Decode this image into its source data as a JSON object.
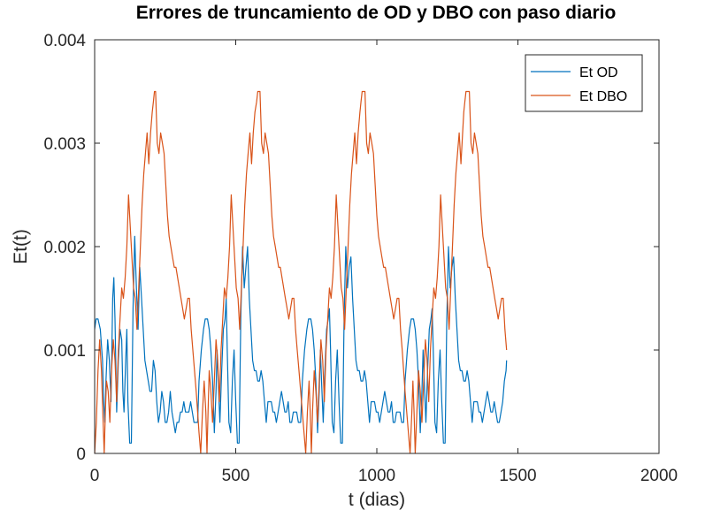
{
  "chart_data": {
    "type": "line",
    "title": "Errores de truncamiento de OD y DBO con paso diario",
    "xlabel": "t (dias)",
    "ylabel": "Et(t)",
    "xlim": [
      0,
      2000
    ],
    "ylim": [
      0,
      0.004
    ],
    "xticks": [
      0,
      500,
      1000,
      1500,
      2000
    ],
    "xtick_labels": [
      "0",
      "500",
      "1000",
      "1500",
      "2000"
    ],
    "yticks": [
      0,
      0.001,
      0.002,
      0.003,
      0.004
    ],
    "ytick_labels": [
      "0",
      "0.001",
      "0.002",
      "0.003",
      "0.004"
    ],
    "grid": false,
    "box": true,
    "legend_position": "top-right",
    "series": [
      {
        "name": "Et OD",
        "color": "#0072BD",
        "x": [
          0,
          5,
          12,
          20,
          28,
          32,
          36,
          40,
          46,
          52,
          58,
          64,
          68,
          72,
          78,
          84,
          90,
          96,
          100,
          104,
          110,
          114,
          118,
          124,
          130,
          136,
          142,
          148,
          154,
          160,
          166,
          172,
          178,
          184,
          190,
          196,
          202,
          208,
          214,
          220,
          226,
          232,
          238,
          244,
          250,
          256,
          262,
          268,
          274,
          280,
          286,
          292,
          298,
          304,
          310,
          316,
          322,
          328,
          334,
          340,
          346,
          352,
          358,
          364,
          365,
          370,
          378,
          386,
          392,
          396,
          400,
          406,
          412,
          418,
          424,
          430,
          434,
          438,
          444,
          450,
          456,
          462,
          466,
          470,
          476,
          482,
          488,
          494,
          500,
          506,
          512,
          518,
          524,
          530,
          536,
          542,
          548,
          554,
          560,
          566,
          572,
          578,
          584,
          590,
          596,
          602,
          608,
          614,
          620,
          626,
          632,
          638,
          644,
          650,
          656,
          662,
          668,
          674,
          680,
          686,
          692,
          698,
          704,
          710,
          716,
          722,
          728,
          730,
          736,
          744,
          752,
          758,
          762,
          766,
          772,
          778,
          784,
          790,
          796,
          800,
          804,
          810,
          816,
          822,
          828,
          832,
          836,
          842,
          848,
          854,
          860,
          866,
          872,
          878,
          884,
          890,
          896,
          902,
          908,
          914,
          920,
          926,
          932,
          938,
          944,
          950,
          956,
          962,
          968,
          974,
          980,
          986,
          992,
          998,
          1004,
          1010,
          1016,
          1022,
          1028,
          1034,
          1040,
          1046,
          1052,
          1058,
          1064,
          1070,
          1076,
          1082,
          1088,
          1094,
          1095,
          1100,
          1108,
          1116,
          1122,
          1126,
          1130,
          1136,
          1142,
          1148,
          1154,
          1160,
          1164,
          1168,
          1174,
          1180,
          1186,
          1192,
          1196,
          1200,
          1206,
          1212,
          1218,
          1224,
          1230,
          1236,
          1242,
          1248,
          1254,
          1260,
          1266,
          1272,
          1278,
          1284,
          1290,
          1296,
          1302,
          1308,
          1314,
          1320,
          1326,
          1332,
          1338,
          1344,
          1350,
          1356,
          1362,
          1368,
          1374,
          1380,
          1386,
          1392,
          1398,
          1404,
          1410,
          1416,
          1422,
          1428,
          1434,
          1440,
          1446,
          1452,
          1458,
          1460
        ],
        "y": [
          0.0012,
          0.0013,
          0.0013,
          0.0012,
          0.0009,
          0.0005,
          0.0003,
          0.0007,
          0.0011,
          0.0009,
          0.0005,
          0.0015,
          0.0017,
          0.0013,
          0.0004,
          0.0009,
          0.0012,
          0.0011,
          0.0006,
          0.0004,
          0.0009,
          0.0012,
          0.0005,
          0.0001,
          0.0001,
          0.0014,
          0.0021,
          0.0016,
          0.0012,
          0.0018,
          0.0015,
          0.0012,
          0.0009,
          0.0008,
          0.0007,
          0.0006,
          0.0006,
          0.0009,
          0.0008,
          0.0005,
          0.0003,
          0.0004,
          0.0006,
          0.0005,
          0.0003,
          0.0003,
          0.0004,
          0.0006,
          0.0004,
          0.0003,
          0.0002,
          0.0003,
          0.0003,
          0.0004,
          0.0004,
          0.0005,
          0.0004,
          0.0004,
          0.0004,
          0.0005,
          0.0004,
          0.0003,
          0.0003,
          0.0003,
          0.0003,
          0.0007,
          0.001,
          0.0012,
          0.0013,
          0.0013,
          0.0013,
          0.0012,
          0.001,
          0.0007,
          0.0002,
          0.0006,
          0.001,
          0.0007,
          0.0003,
          0.0008,
          0.0012,
          0.0013,
          0.0015,
          0.001,
          0.0003,
          0.0002,
          0.0007,
          0.001,
          0.0005,
          0.0001,
          0.0001,
          0.0013,
          0.002,
          0.0016,
          0.0018,
          0.002,
          0.0015,
          0.0012,
          0.0009,
          0.0008,
          0.0008,
          0.0007,
          0.0007,
          0.0008,
          0.0007,
          0.0005,
          0.0003,
          0.0005,
          0.0005,
          0.0005,
          0.0004,
          0.0004,
          0.0003,
          0.0004,
          0.0005,
          0.0006,
          0.0005,
          0.0004,
          0.0004,
          0.0005,
          0.0003,
          0.0003,
          0.0004,
          0.0004,
          0.0004,
          0.0003,
          0.0003,
          0.0003,
          0.0007,
          0.001,
          0.0012,
          0.0013,
          0.0013,
          0.0013,
          0.0012,
          0.001,
          0.0007,
          0.0002,
          0.0006,
          0.001,
          0.0007,
          0.0003,
          0.0008,
          0.0012,
          0.0013,
          0.0014,
          0.001,
          0.0003,
          0.0002,
          0.0007,
          0.001,
          0.0005,
          0.0001,
          0.0001,
          0.0013,
          0.002,
          0.0016,
          0.0018,
          0.0019,
          0.0015,
          0.0012,
          0.0009,
          0.0008,
          0.0008,
          0.0007,
          0.0007,
          0.0008,
          0.0007,
          0.0005,
          0.0003,
          0.0005,
          0.0005,
          0.0005,
          0.0004,
          0.0004,
          0.0003,
          0.0004,
          0.0005,
          0.0006,
          0.0005,
          0.0004,
          0.0004,
          0.0005,
          0.0003,
          0.0003,
          0.0004,
          0.0004,
          0.0004,
          0.0003,
          0.0003,
          0.0003,
          0.0007,
          0.001,
          0.0012,
          0.0013,
          0.0013,
          0.0013,
          0.0012,
          0.001,
          0.0007,
          0.0002,
          0.0006,
          0.001,
          0.0007,
          0.0003,
          0.0008,
          0.0012,
          0.0013,
          0.0014,
          0.001,
          0.0003,
          0.0002,
          0.0007,
          0.001,
          0.0005,
          0.0001,
          0.0001,
          0.0013,
          0.002,
          0.0016,
          0.0018,
          0.0019,
          0.0015,
          0.0012,
          0.0009,
          0.0008,
          0.0008,
          0.0007,
          0.0007,
          0.0008,
          0.0007,
          0.0005,
          0.0003,
          0.0005,
          0.0005,
          0.0005,
          0.0004,
          0.0004,
          0.0003,
          0.0004,
          0.0005,
          0.0006,
          0.0005,
          0.0004,
          0.0004,
          0.0005,
          0.0004,
          0.0003,
          0.0003,
          0.0004,
          0.0005,
          0.0007,
          0.0008,
          0.0009
        ]
      },
      {
        "name": "Et DBO",
        "color": "#D95319",
        "x": [
          0,
          6,
          12,
          18,
          24,
          30,
          34,
          38,
          42,
          48,
          54,
          60,
          66,
          72,
          78,
          84,
          90,
          96,
          102,
          108,
          114,
          120,
          126,
          132,
          138,
          144,
          150,
          156,
          162,
          168,
          174,
          180,
          186,
          192,
          198,
          204,
          208,
          212,
          216,
          222,
          228,
          234,
          240,
          246,
          252,
          258,
          264,
          270,
          276,
          282,
          288,
          294,
          300,
          306,
          312,
          318,
          324,
          330,
          336,
          342,
          348,
          354,
          360,
          365,
          370,
          376,
          382,
          388,
          394,
          398,
          402,
          406,
          412,
          418,
          424,
          430,
          436,
          442,
          448,
          454,
          460,
          466,
          472,
          478,
          484,
          490,
          496,
          502,
          508,
          514,
          520,
          526,
          532,
          538,
          544,
          550,
          556,
          562,
          568,
          574,
          578,
          582,
          586,
          592,
          598,
          604,
          610,
          616,
          622,
          628,
          634,
          640,
          646,
          652,
          658,
          664,
          670,
          676,
          682,
          688,
          694,
          700,
          706,
          712,
          718,
          724,
          730,
          736,
          742,
          748,
          754,
          760,
          764,
          768,
          772,
          778,
          784,
          790,
          796,
          802,
          808,
          814,
          820,
          826,
          832,
          838,
          844,
          850,
          856,
          862,
          868,
          874,
          880,
          886,
          892,
          898,
          904,
          910,
          916,
          922,
          928,
          934,
          940,
          944,
          948,
          952,
          958,
          964,
          970,
          976,
          982,
          988,
          994,
          1000,
          1006,
          1012,
          1018,
          1024,
          1030,
          1036,
          1042,
          1048,
          1054,
          1060,
          1066,
          1072,
          1078,
          1084,
          1090,
          1095,
          1100,
          1106,
          1112,
          1118,
          1124,
          1128,
          1132,
          1136,
          1142,
          1148,
          1154,
          1160,
          1166,
          1172,
          1178,
          1184,
          1190,
          1196,
          1202,
          1208,
          1214,
          1220,
          1226,
          1232,
          1238,
          1244,
          1250,
          1256,
          1262,
          1268,
          1274,
          1280,
          1286,
          1292,
          1298,
          1304,
          1308,
          1312,
          1316,
          1322,
          1328,
          1334,
          1340,
          1346,
          1352,
          1358,
          1364,
          1370,
          1376,
          1382,
          1388,
          1394,
          1400,
          1406,
          1412,
          1418,
          1424,
          1430,
          1436,
          1442,
          1448,
          1454,
          1460
        ],
        "y": [
          0.0,
          0.0003,
          0.0008,
          0.0011,
          0.0008,
          0.0003,
          0.0,
          0.0004,
          0.0007,
          0.0006,
          0.0003,
          0.0008,
          0.0011,
          0.0009,
          0.0005,
          0.001,
          0.0013,
          0.0016,
          0.0015,
          0.0017,
          0.002,
          0.0025,
          0.0022,
          0.0019,
          0.0016,
          0.0015,
          0.0012,
          0.0016,
          0.002,
          0.0024,
          0.0027,
          0.0029,
          0.0031,
          0.0028,
          0.0031,
          0.0033,
          0.0034,
          0.0035,
          0.0035,
          0.003,
          0.0029,
          0.0031,
          0.003,
          0.0029,
          0.0026,
          0.0023,
          0.0021,
          0.002,
          0.0019,
          0.0018,
          0.0018,
          0.0017,
          0.0016,
          0.0015,
          0.0014,
          0.0013,
          0.0014,
          0.0015,
          0.0015,
          0.0012,
          0.001,
          0.0008,
          0.0006,
          0.0004,
          0.0002,
          0.0,
          0.0004,
          0.0007,
          0.0004,
          0.0,
          0.0004,
          0.0008,
          0.0006,
          0.0003,
          0.0007,
          0.0011,
          0.0009,
          0.0005,
          0.001,
          0.0013,
          0.0016,
          0.0015,
          0.0017,
          0.002,
          0.0025,
          0.0022,
          0.0019,
          0.0016,
          0.0015,
          0.0012,
          0.0016,
          0.002,
          0.0024,
          0.0027,
          0.0029,
          0.0031,
          0.0028,
          0.0031,
          0.0033,
          0.0034,
          0.0035,
          0.0035,
          0.0035,
          0.003,
          0.0029,
          0.0031,
          0.003,
          0.0029,
          0.0026,
          0.0023,
          0.0021,
          0.002,
          0.0019,
          0.0018,
          0.0018,
          0.0017,
          0.0016,
          0.0015,
          0.0014,
          0.0013,
          0.0014,
          0.0015,
          0.0015,
          0.0012,
          0.001,
          0.0008,
          0.0006,
          0.0004,
          0.0002,
          0.0,
          0.0004,
          0.0007,
          0.0004,
          0.0,
          0.0004,
          0.0008,
          0.0006,
          0.0003,
          0.0007,
          0.0011,
          0.0009,
          0.0005,
          0.001,
          0.0013,
          0.0016,
          0.0015,
          0.0017,
          0.002,
          0.0025,
          0.0022,
          0.0019,
          0.0016,
          0.0015,
          0.0012,
          0.0016,
          0.002,
          0.0024,
          0.0027,
          0.0029,
          0.0031,
          0.0028,
          0.0031,
          0.0033,
          0.0034,
          0.0035,
          0.0035,
          0.0035,
          0.003,
          0.0029,
          0.0031,
          0.003,
          0.0029,
          0.0026,
          0.0023,
          0.0021,
          0.002,
          0.0019,
          0.0018,
          0.0018,
          0.0017,
          0.0016,
          0.0015,
          0.0014,
          0.0013,
          0.0014,
          0.0015,
          0.0015,
          0.0012,
          0.001,
          0.0008,
          0.0006,
          0.0004,
          0.0002,
          0.0,
          0.0004,
          0.0007,
          0.0004,
          0.0,
          0.0004,
          0.0008,
          0.0006,
          0.0003,
          0.0007,
          0.0011,
          0.0009,
          0.0005,
          0.001,
          0.0013,
          0.0016,
          0.0015,
          0.0017,
          0.002,
          0.0025,
          0.0022,
          0.0019,
          0.0016,
          0.0015,
          0.0012,
          0.0016,
          0.002,
          0.0024,
          0.0027,
          0.0029,
          0.0031,
          0.0028,
          0.0031,
          0.0033,
          0.0034,
          0.0035,
          0.0035,
          0.0035,
          0.003,
          0.0029,
          0.0031,
          0.003,
          0.0029,
          0.0026,
          0.0023,
          0.0021,
          0.002,
          0.0019,
          0.0018,
          0.0018,
          0.0017,
          0.0016,
          0.0015,
          0.0014,
          0.0013,
          0.0014,
          0.0015,
          0.0015,
          0.0012,
          0.001
        ]
      }
    ]
  }
}
